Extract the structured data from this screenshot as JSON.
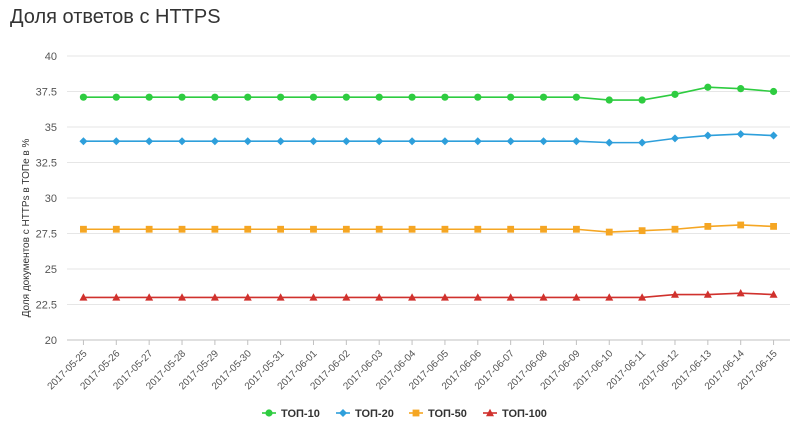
{
  "chart_data": {
    "type": "line",
    "title": "Доля ответов с HTTPS",
    "xlabel": "",
    "ylabel": "Доля документов с HTTPs в ТОПе в %",
    "ylim": [
      20,
      40
    ],
    "yticks": [
      "20",
      "22.5",
      "25",
      "27.5",
      "30",
      "32.5",
      "35",
      "37.5",
      "40"
    ],
    "categories": [
      "2017-05-25",
      "2017-05-26",
      "2017-05-27",
      "2017-05-28",
      "2017-05-29",
      "2017-05-30",
      "2017-05-31",
      "2017-06-01",
      "2017-06-02",
      "2017-06-03",
      "2017-06-04",
      "2017-06-05",
      "2017-06-06",
      "2017-06-07",
      "2017-06-08",
      "2017-06-09",
      "2017-06-10",
      "2017-06-11",
      "2017-06-12",
      "2017-06-13",
      "2017-06-14",
      "2017-06-15"
    ],
    "grid": true,
    "legend_position": "bottom",
    "series": [
      {
        "name": "ТОП-10",
        "color": "#2ecc40",
        "marker": "circle",
        "values": [
          37.1,
          37.1,
          37.1,
          37.1,
          37.1,
          37.1,
          37.1,
          37.1,
          37.1,
          37.1,
          37.1,
          37.1,
          37.1,
          37.1,
          37.1,
          37.1,
          36.9,
          36.9,
          37.3,
          37.8,
          37.7,
          37.5
        ]
      },
      {
        "name": "ТОП-20",
        "color": "#2e9fdb",
        "marker": "diamond",
        "values": [
          34.0,
          34.0,
          34.0,
          34.0,
          34.0,
          34.0,
          34.0,
          34.0,
          34.0,
          34.0,
          34.0,
          34.0,
          34.0,
          34.0,
          34.0,
          34.0,
          33.9,
          33.9,
          34.2,
          34.4,
          34.5,
          34.4
        ]
      },
      {
        "name": "ТОП-50",
        "color": "#f5a623",
        "marker": "square",
        "values": [
          27.8,
          27.8,
          27.8,
          27.8,
          27.8,
          27.8,
          27.8,
          27.8,
          27.8,
          27.8,
          27.8,
          27.8,
          27.8,
          27.8,
          27.8,
          27.8,
          27.6,
          27.7,
          27.8,
          28.0,
          28.1,
          28.0
        ]
      },
      {
        "name": "ТОП-100",
        "color": "#d0312d",
        "marker": "triangle",
        "values": [
          23.0,
          23.0,
          23.0,
          23.0,
          23.0,
          23.0,
          23.0,
          23.0,
          23.0,
          23.0,
          23.0,
          23.0,
          23.0,
          23.0,
          23.0,
          23.0,
          23.0,
          23.0,
          23.2,
          23.2,
          23.3,
          23.2
        ]
      }
    ]
  }
}
